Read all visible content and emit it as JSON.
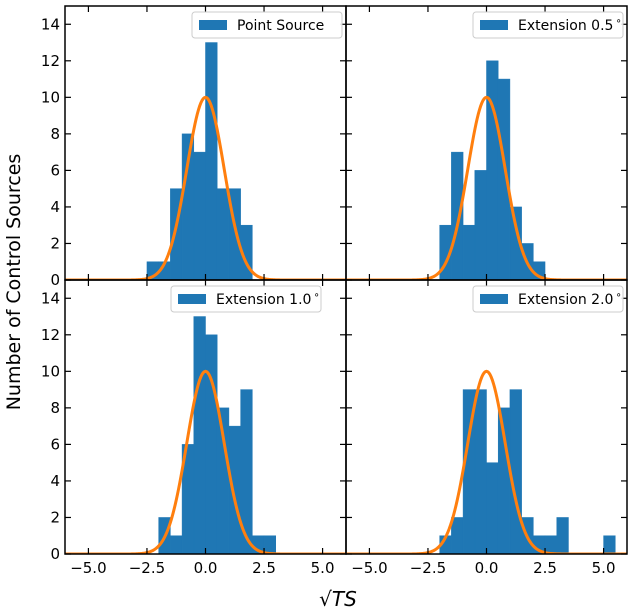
{
  "figure": {
    "ylabel": "Number of Control Sources",
    "xlabel": "√TS",
    "xlim": [
      -6.0,
      6.0
    ],
    "ylim": [
      0,
      15
    ],
    "xticks": [
      -5.0,
      -2.5,
      0.0,
      2.5,
      5.0
    ],
    "xtick_labels": [
      "−5.0",
      "−2.5",
      "0.0",
      "2.5",
      "5.0"
    ],
    "yticks": [
      0,
      2,
      4,
      6,
      8,
      10,
      12,
      14
    ],
    "ytick_labels": [
      "0",
      "2",
      "4",
      "6",
      "8",
      "10",
      "12",
      "14"
    ],
    "bar_color": "#1f77b4",
    "curve_color": "#ff7f0e"
  },
  "chart_data": [
    {
      "type": "bar",
      "title": "Point Source",
      "legend": "Point Source",
      "legend_position": "top-right",
      "bin_width": 0.5,
      "bins": [
        {
          "x0": -2.5,
          "value": 1
        },
        {
          "x0": -2.0,
          "value": 1
        },
        {
          "x0": -1.5,
          "value": 5
        },
        {
          "x0": -1.0,
          "value": 8
        },
        {
          "x0": -0.5,
          "value": 7
        },
        {
          "x0": 0.0,
          "value": 13
        },
        {
          "x0": 0.5,
          "value": 5
        },
        {
          "x0": 1.0,
          "value": 5
        },
        {
          "x0": 1.5,
          "value": 3
        }
      ],
      "gaussian": {
        "amplitude": 10,
        "mean": 0.0,
        "sigma": 0.8
      }
    },
    {
      "type": "bar",
      "title": "Extension 0.5°",
      "legend": "Extension 0.5$^\\circ$",
      "legend_position": "top-right",
      "bin_width": 0.5,
      "bins": [
        {
          "x0": -2.0,
          "value": 3
        },
        {
          "x0": -1.5,
          "value": 7
        },
        {
          "x0": -1.0,
          "value": 3
        },
        {
          "x0": -0.5,
          "value": 6
        },
        {
          "x0": 0.0,
          "value": 12
        },
        {
          "x0": 0.5,
          "value": 11
        },
        {
          "x0": 1.0,
          "value": 4
        },
        {
          "x0": 1.5,
          "value": 2
        },
        {
          "x0": 2.0,
          "value": 1
        }
      ],
      "gaussian": {
        "amplitude": 10,
        "mean": 0.0,
        "sigma": 0.8
      }
    },
    {
      "type": "bar",
      "title": "Extension 1.0°",
      "legend": "Extension 1.0$^\\circ$",
      "legend_position": "top-left",
      "bin_width": 0.5,
      "bins": [
        {
          "x0": -2.0,
          "value": 2
        },
        {
          "x0": -1.5,
          "value": 1
        },
        {
          "x0": -1.0,
          "value": 6
        },
        {
          "x0": -0.5,
          "value": 13
        },
        {
          "x0": 0.0,
          "value": 12
        },
        {
          "x0": 0.5,
          "value": 8
        },
        {
          "x0": 1.0,
          "value": 7
        },
        {
          "x0": 1.5,
          "value": 9
        },
        {
          "x0": 2.0,
          "value": 1
        },
        {
          "x0": 2.5,
          "value": 1
        }
      ],
      "gaussian": {
        "amplitude": 10,
        "mean": 0.0,
        "sigma": 0.8
      }
    },
    {
      "type": "bar",
      "title": "Extension 2.0°",
      "legend": "Extension 2.0$^\\circ$",
      "legend_position": "top-right",
      "bin_width": 0.5,
      "bins": [
        {
          "x0": -2.0,
          "value": 1
        },
        {
          "x0": -1.5,
          "value": 2
        },
        {
          "x0": -1.0,
          "value": 9
        },
        {
          "x0": -0.5,
          "value": 9
        },
        {
          "x0": 0.0,
          "value": 5
        },
        {
          "x0": 0.5,
          "value": 8
        },
        {
          "x0": 1.0,
          "value": 9
        },
        {
          "x0": 1.5,
          "value": 2
        },
        {
          "x0": 2.0,
          "value": 1
        },
        {
          "x0": 2.5,
          "value": 1
        },
        {
          "x0": 3.0,
          "value": 2
        },
        {
          "x0": 5.0,
          "value": 1
        }
      ],
      "gaussian": {
        "amplitude": 10,
        "mean": 0.0,
        "sigma": 0.8
      }
    }
  ]
}
